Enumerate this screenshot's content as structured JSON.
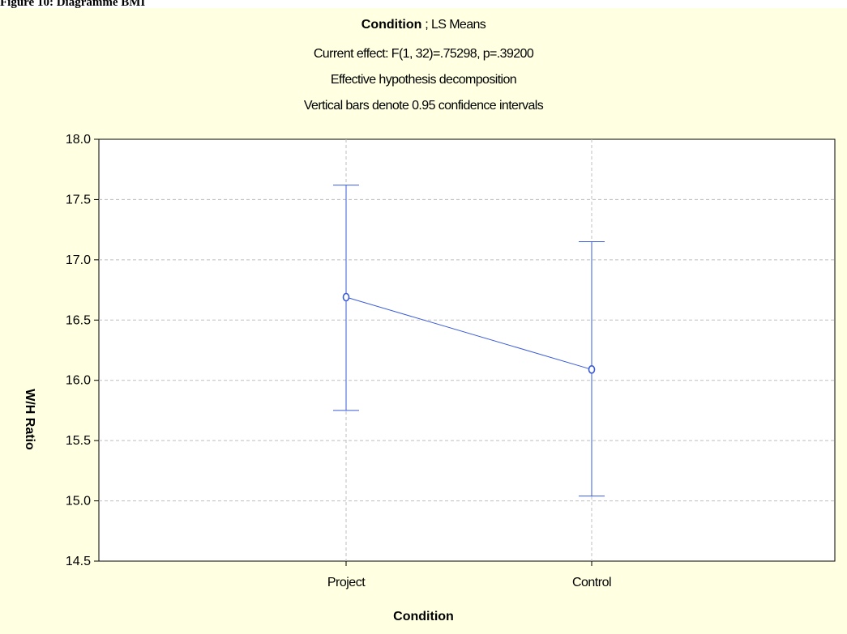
{
  "figure_caption": "Figure 10:  Diagramme BMI",
  "colors": {
    "background": "#FFFFE1",
    "plot_area": "#FFFFFF",
    "series": "#3A5BD9",
    "grid": "#BFBFBF"
  },
  "chart_data": {
    "type": "line",
    "title": "Condition",
    "title_suffix": "; LS Means",
    "subtitle_lines": [
      "Current effect: F(1, 32)=.75298, p=.39200",
      "Effective hypothesis decomposition",
      "Vertical bars denote 0.95 confidence intervals"
    ],
    "xlabel": "Condition",
    "ylabel": "W/H Ratio",
    "categories": [
      "Project",
      "Control"
    ],
    "values": [
      16.69,
      16.09
    ],
    "ci_lower": [
      15.75,
      15.04
    ],
    "ci_upper": [
      17.62,
      17.15
    ],
    "ylim": [
      14.5,
      18.0
    ],
    "yticks": [
      "14.5",
      "15.0",
      "15.5",
      "16.0",
      "16.5",
      "17.0",
      "17.5",
      "18.0"
    ],
    "grid": true,
    "legend": "none"
  }
}
